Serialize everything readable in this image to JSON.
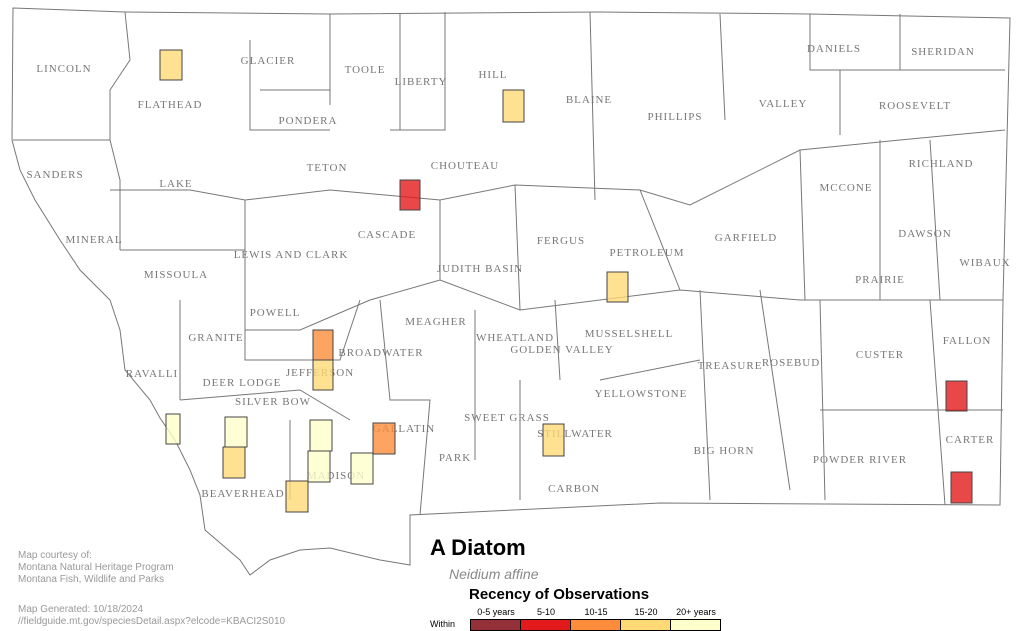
{
  "title": "A Diatom",
  "scientific_name": "Neidium affine",
  "credits": [
    "Map courtesy of:",
    "Montana Natural Heritage Program",
    "Montana Fish, Wildlife and Parks"
  ],
  "generated": "Map Generated: 10/18/2024",
  "url": "//fieldguide.mt.gov/speciesDetail.aspx?elcode=KBACI2S010",
  "legend": {
    "title": "Recency of Observations",
    "within_label": "Within",
    "classes": [
      {
        "label": "0-5 years",
        "color": "#943038"
      },
      {
        "label": "5-10",
        "color": "#e31a1c"
      },
      {
        "label": "10-15",
        "color": "#fd8d3c"
      },
      {
        "label": "15-20",
        "color": "#fed976"
      },
      {
        "label": "20+ years",
        "color": "#ffffcc"
      }
    ]
  },
  "counties": [
    "LINCOLN",
    "FLATHEAD",
    "GLACIER",
    "TOOLE",
    "LIBERTY",
    "HILL",
    "BLAINE",
    "PHILLIPS",
    "VALLEY",
    "DANIELS",
    "SHERIDAN",
    "ROOSEVELT",
    "PONDERA",
    "TETON",
    "CHOUTEAU",
    "SANDERS",
    "LAKE",
    "RICHLAND",
    "MCCONE",
    "CASCADE",
    "MINERAL",
    "LEWIS AND CLARK",
    "FERGUS",
    "PETROLEUM",
    "GARFIELD",
    "DAWSON",
    "MISSOULA",
    "JUDITH BASIN",
    "WIBAUX",
    "PRAIRIE",
    "POWELL",
    "MEAGHER",
    "WHEATLAND",
    "GOLDEN VALLEY",
    "MUSSELSHELL",
    "GRANITE",
    "BROADWATER",
    "FALLON",
    "CUSTER",
    "ROSEBUD",
    "TREASURE",
    "RAVALLI",
    "DEER LODGE",
    "JEFFERSON",
    "SILVER BOW",
    "YELLOWSTONE",
    "GALLATIN",
    "SWEET GRASS",
    "STILLWATER",
    "CARTER",
    "PARK",
    "BIG HORN",
    "MADISON",
    "POWDER RIVER",
    "CARBON",
    "BEAVERHEAD"
  ],
  "observations": [
    {
      "county": "FLATHEAD",
      "recency": "15-20"
    },
    {
      "county": "HILL",
      "recency": "15-20"
    },
    {
      "county": "CASCADE",
      "recency": "5-10"
    },
    {
      "county": "PETROLEUM",
      "recency": "15-20"
    },
    {
      "county": "JEFFERSON",
      "recency": "10-15"
    },
    {
      "county": "JEFFERSON",
      "recency": "15-20"
    },
    {
      "county": "BEAVERHEAD",
      "recency": "20+ years"
    },
    {
      "county": "BEAVERHEAD",
      "recency": "20+ years"
    },
    {
      "county": "BEAVERHEAD",
      "recency": "15-20"
    },
    {
      "county": "BEAVERHEAD",
      "recency": "15-20"
    },
    {
      "county": "MADISON",
      "recency": "20+ years"
    },
    {
      "county": "MADISON",
      "recency": "20+ years"
    },
    {
      "county": "GALLATIN",
      "recency": "10-15"
    },
    {
      "county": "MADISON",
      "recency": "20+ years"
    },
    {
      "county": "STILLWATER",
      "recency": "15-20"
    },
    {
      "county": "CARTER",
      "recency": "5-10"
    },
    {
      "county": "CARTER",
      "recency": "5-10"
    }
  ]
}
